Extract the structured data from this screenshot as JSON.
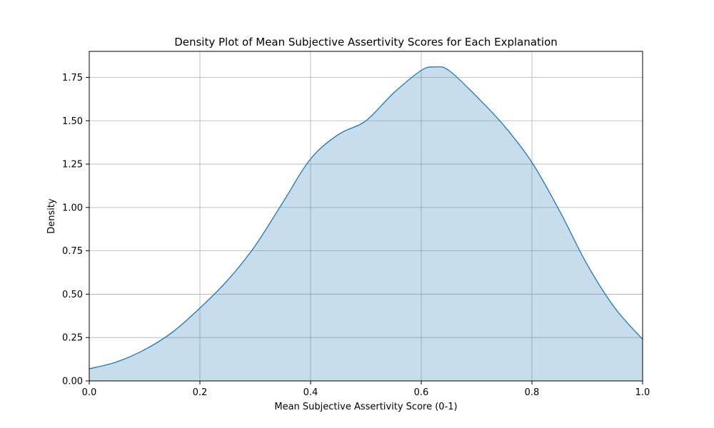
{
  "chart_data": {
    "type": "area",
    "title": "Density Plot of Mean Subjective Assertivity Scores for Each Explanation",
    "xlabel": "Mean Subjective Assertivity Score (0-1)",
    "ylabel": "Density",
    "xlim": [
      0.0,
      1.0
    ],
    "ylim": [
      0.0,
      1.9
    ],
    "x_ticks": [
      0.0,
      0.2,
      0.4,
      0.6,
      0.8,
      1.0
    ],
    "x_tick_labels": [
      "0.0",
      "0.2",
      "0.4",
      "0.6",
      "0.8",
      "1.0"
    ],
    "y_ticks": [
      0.0,
      0.25,
      0.5,
      0.75,
      1.0,
      1.25,
      1.5,
      1.75
    ],
    "y_tick_labels": [
      "0.00",
      "0.25",
      "0.50",
      "0.75",
      "1.00",
      "1.25",
      "1.50",
      "1.75"
    ],
    "grid": true,
    "legend": "none",
    "colors": {
      "line": "#1f77b4",
      "fill": "#1f77b4",
      "grid": "#b0b0b0"
    },
    "series": [
      {
        "x": [
          0.0,
          0.05,
          0.1,
          0.15,
          0.2,
          0.25,
          0.3,
          0.35,
          0.4,
          0.45,
          0.5,
          0.55,
          0.6,
          0.625,
          0.65,
          0.7,
          0.75,
          0.8,
          0.85,
          0.9,
          0.95,
          1.0
        ],
        "y": [
          0.07,
          0.11,
          0.18,
          0.28,
          0.42,
          0.58,
          0.78,
          1.03,
          1.28,
          1.42,
          1.5,
          1.66,
          1.79,
          1.81,
          1.79,
          1.64,
          1.47,
          1.26,
          0.98,
          0.67,
          0.42,
          0.24
        ]
      }
    ]
  }
}
